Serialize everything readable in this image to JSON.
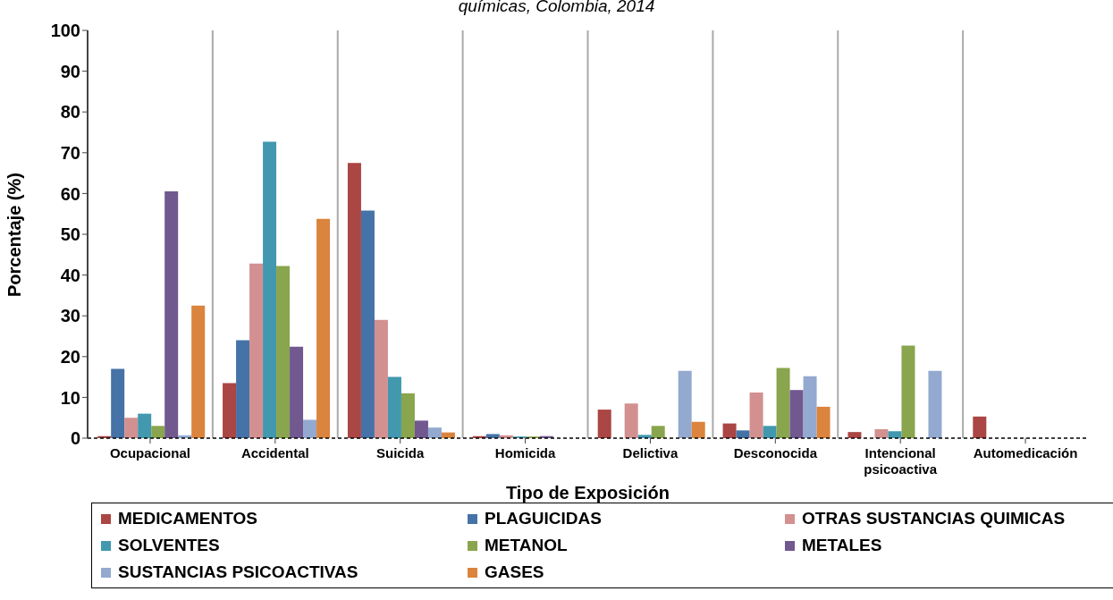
{
  "chart_data": {
    "type": "bar",
    "title": "químicas, Colombia, 2014",
    "xlabel": "Tipo de Exposición",
    "ylabel": "Porcentaje (%)",
    "categories": [
      "Ocupacional",
      "Accidental",
      "Suicida",
      "Homicida",
      "Delictiva",
      "Desconocida",
      "Intencional psicoactiva",
      "Automedicación"
    ],
    "series": [
      {
        "name": "MEDICAMENTOS",
        "color": "#aa4643",
        "values": [
          0.5,
          13.5,
          67.5,
          0.5,
          7,
          3.6,
          1.5,
          5.3
        ]
      },
      {
        "name": "PLAGUICIDAS",
        "color": "#4572a7",
        "values": [
          17,
          24,
          55.8,
          1,
          null,
          1.9,
          0,
          0
        ]
      },
      {
        "name": "OTRAS SUSTANCIAS QUIMICAS",
        "color": "#d39090",
        "values": [
          5,
          42.8,
          29,
          0.7,
          8.5,
          11.2,
          2.2,
          0
        ]
      },
      {
        "name": "SOLVENTES",
        "color": "#4198af",
        "values": [
          6,
          72.7,
          15,
          0.4,
          0.8,
          3,
          1.7,
          0
        ]
      },
      {
        "name": "METANOL",
        "color": "#89a54e",
        "values": [
          3,
          42.2,
          11,
          0.4,
          3,
          17.2,
          22.7,
          0
        ]
      },
      {
        "name": "METALES",
        "color": "#71588f",
        "values": [
          60.5,
          22.4,
          4.3,
          0.5,
          0,
          11.8,
          0,
          0
        ]
      },
      {
        "name": "SUSTANCIAS PSICOACTIVAS",
        "color": "#93a9d0",
        "values": [
          0.7,
          4.5,
          2.6,
          null,
          16.5,
          15.2,
          16.5,
          0
        ]
      },
      {
        "name": "GASES",
        "color": "#db843d",
        "values": [
          32.5,
          53.8,
          1.4,
          null,
          4,
          7.7,
          0,
          0
        ]
      }
    ],
    "ylim": [
      0,
      100
    ],
    "yticks": [
      0,
      10,
      20,
      30,
      40,
      50,
      60,
      70,
      80,
      90,
      100
    ],
    "grid": "x",
    "legend": "bottom"
  }
}
